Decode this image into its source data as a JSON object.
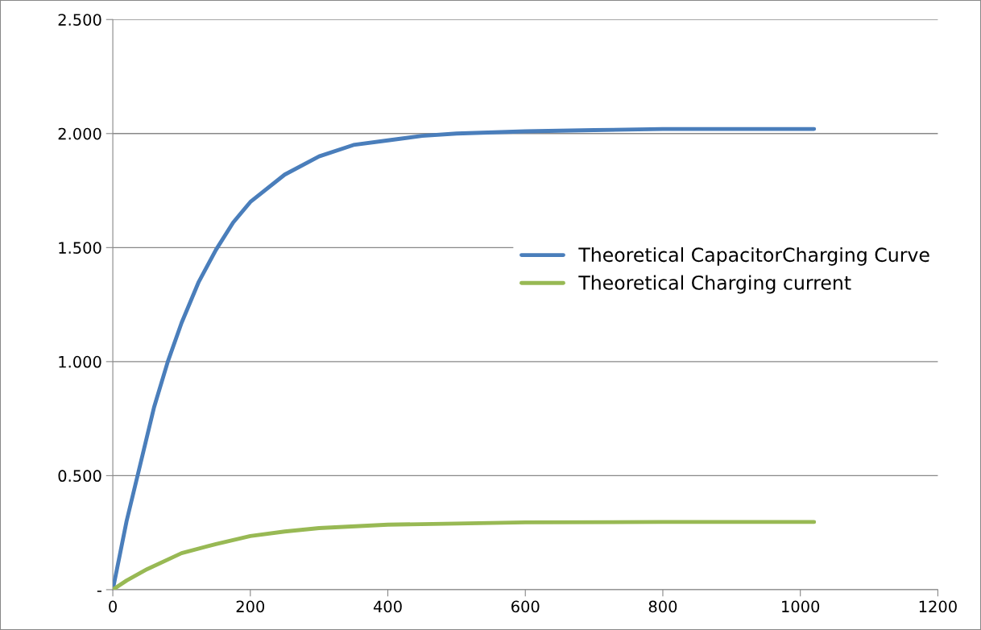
{
  "chart_data": {
    "type": "line",
    "xlim": [
      0,
      1200
    ],
    "xticks": [
      0,
      200,
      400,
      600,
      800,
      1000,
      1200
    ],
    "ylim": [
      0,
      2.5
    ],
    "yticks": [
      {
        "value": 0,
        "label": "-"
      },
      {
        "value": 0.5,
        "label": "0.500"
      },
      {
        "value": 1.0,
        "label": "1.000"
      },
      {
        "value": 1.5,
        "label": "1.500"
      },
      {
        "value": 2.0,
        "label": "2.000"
      },
      {
        "value": 2.5,
        "label": "2.500"
      }
    ],
    "grid": "y",
    "legend": "right",
    "line_style": "solid",
    "series": [
      {
        "name": "Theoretical CapacitorCharging Curve",
        "color": "#4a7ebb",
        "x": [
          0,
          20,
          40,
          60,
          80,
          100,
          125,
          150,
          175,
          200,
          250,
          300,
          350,
          400,
          450,
          500,
          600,
          700,
          800,
          1020
        ],
        "values": [
          0,
          0.3,
          0.55,
          0.8,
          1.0,
          1.17,
          1.35,
          1.49,
          1.61,
          1.7,
          1.82,
          1.9,
          1.95,
          1.97,
          1.99,
          2.0,
          2.01,
          2.015,
          2.02,
          2.02
        ]
      },
      {
        "name": "Theoretical Charging current",
        "color": "#98b954",
        "x": [
          0,
          20,
          50,
          100,
          150,
          200,
          250,
          300,
          400,
          500,
          600,
          800,
          1020
        ],
        "values": [
          0,
          0.04,
          0.09,
          0.16,
          0.2,
          0.235,
          0.255,
          0.27,
          0.285,
          0.29,
          0.295,
          0.297,
          0.297
        ]
      }
    ]
  }
}
